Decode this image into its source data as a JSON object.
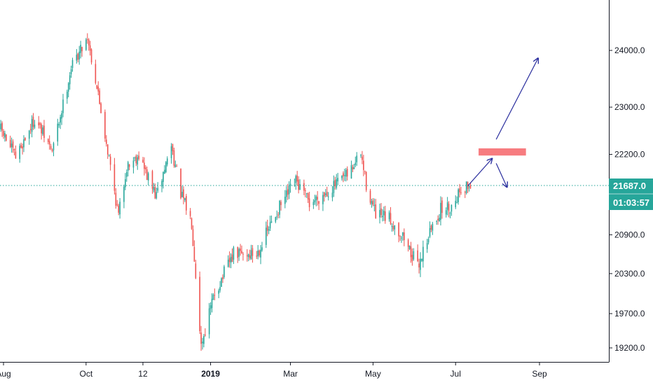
{
  "chart_data": {
    "type": "candlestick",
    "colors": {
      "up": "#26a69a",
      "down": "#ef5350",
      "current_price_line": "#26a69a",
      "arrows": "#2a2e9e",
      "target_zone": "#f77c80",
      "axis": "#131722"
    },
    "x_tick_labels": [
      "Aug",
      "Oct",
      "12",
      "2019",
      "Mar",
      "May",
      "Jul",
      "Sep"
    ],
    "y_tick_labels": [
      "24000.0",
      "23000.0",
      "22200.0",
      "20900.0",
      "20300.0",
      "19700.0",
      "19200.0"
    ],
    "ylim": [
      19100,
      24900
    ],
    "current_price": {
      "value": 21687,
      "label": "21687.0",
      "countdown": "01:03:57"
    },
    "target_zone": {
      "price_low": 22180,
      "price_high": 22300,
      "start": "2019-07-18",
      "end": "2019-08-22"
    },
    "projection_arrows": [
      {
        "from": {
          "date": "2019-07-10",
          "value": 21680
        },
        "to": {
          "date": "2019-07-28",
          "value": 22130
        }
      },
      {
        "from": {
          "date": "2019-07-31",
          "value": 22450
        },
        "to": {
          "date": "2019-08-31",
          "value": 23860
        }
      },
      {
        "from": {
          "date": "2019-07-31",
          "value": 22050
        },
        "to": {
          "date": "2019-08-08",
          "value": 21660
        }
      }
    ],
    "series_anchors": [
      {
        "date": "2018-07-30",
        "close": 22620
      },
      {
        "date": "2018-08-10",
        "close": 22150
      },
      {
        "date": "2018-08-24",
        "close": 22800
      },
      {
        "date": "2018-09-06",
        "close": 22250
      },
      {
        "date": "2018-09-14",
        "close": 23050
      },
      {
        "date": "2018-09-20",
        "close": 23700
      },
      {
        "date": "2018-10-02",
        "close": 24250
      },
      {
        "date": "2018-10-09",
        "close": 23350
      },
      {
        "date": "2018-10-16",
        "close": 22400
      },
      {
        "date": "2018-10-25",
        "close": 21200
      },
      {
        "date": "2018-10-31",
        "close": 22000
      },
      {
        "date": "2018-11-09",
        "close": 22200
      },
      {
        "date": "2018-11-14",
        "close": 21900
      },
      {
        "date": "2018-11-22",
        "close": 21500
      },
      {
        "date": "2018-12-03",
        "close": 22350
      },
      {
        "date": "2018-12-10",
        "close": 21550
      },
      {
        "date": "2018-12-18",
        "close": 21100
      },
      {
        "date": "2018-12-25",
        "close": 19250
      },
      {
        "date": "2019-01-04",
        "close": 20000
      },
      {
        "date": "2019-01-18",
        "close": 20600
      },
      {
        "date": "2019-02-04",
        "close": 20600
      },
      {
        "date": "2019-02-20",
        "close": 21300
      },
      {
        "date": "2019-03-05",
        "close": 21750
      },
      {
        "date": "2019-03-15",
        "close": 21400
      },
      {
        "date": "2019-03-29",
        "close": 21600
      },
      {
        "date": "2019-04-12",
        "close": 21850
      },
      {
        "date": "2019-04-22",
        "close": 22200
      },
      {
        "date": "2019-04-26",
        "close": 21700
      },
      {
        "date": "2019-05-03",
        "close": 21200
      },
      {
        "date": "2019-05-13",
        "close": 21150
      },
      {
        "date": "2019-05-24",
        "close": 20850
      },
      {
        "date": "2019-06-03",
        "close": 20400
      },
      {
        "date": "2019-06-10",
        "close": 20850
      },
      {
        "date": "2019-06-20",
        "close": 21300
      },
      {
        "date": "2019-06-28",
        "close": 21350
      },
      {
        "date": "2019-07-05",
        "close": 21650
      },
      {
        "date": "2019-07-12",
        "close": 21687
      }
    ]
  }
}
